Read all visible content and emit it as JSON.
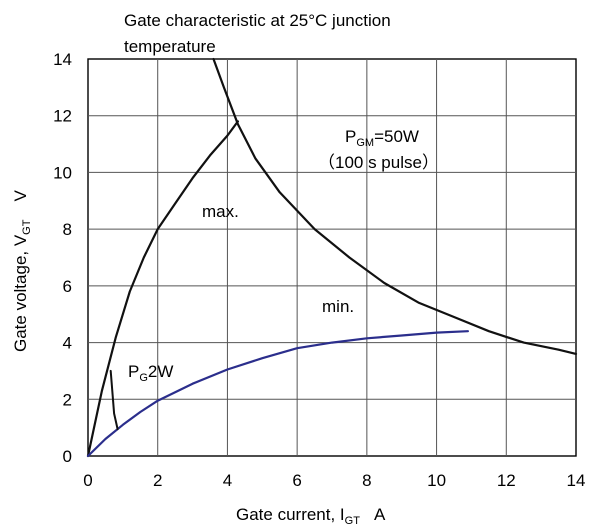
{
  "chart_data": {
    "type": "line",
    "title_line1": "Gate characteristic at  25°C junction",
    "title_line2": "temperature",
    "xlabel_prefix": "Gate current, I",
    "xlabel_sub": "GT",
    "xlabel_suffix": "A",
    "ylabel_prefix": "Gate voltage, V",
    "ylabel_sub": "GT",
    "ylabel_suffix": "V",
    "xlim": [
      0,
      14
    ],
    "ylim": [
      0,
      14
    ],
    "xticks": [
      "0",
      "2",
      "4",
      "6",
      "8",
      "10",
      "12",
      "14"
    ],
    "yticks": [
      "0",
      "2",
      "4",
      "6",
      "8",
      "10",
      "12",
      "14"
    ],
    "grid": true,
    "colors": {
      "black_curves": "#111111",
      "blue_curve": "#2b2e8c",
      "grid": "#555555"
    },
    "series": [
      {
        "key": "power_limit",
        "values": [
          [
            3.6,
            14
          ],
          [
            3.9,
            13
          ],
          [
            4.3,
            11.7
          ],
          [
            4.8,
            10.5
          ],
          [
            5.5,
            9.3
          ],
          [
            6.5,
            8.0
          ],
          [
            7.5,
            7.0
          ],
          [
            8.5,
            6.1
          ],
          [
            9.5,
            5.4
          ],
          [
            10.5,
            4.9
          ],
          [
            11.5,
            4.4
          ],
          [
            12.5,
            4.0
          ],
          [
            13.5,
            3.75
          ],
          [
            14,
            3.6
          ]
        ]
      },
      {
        "key": "max",
        "values": [
          [
            0,
            0
          ],
          [
            0.4,
            2.3
          ],
          [
            0.8,
            4.2
          ],
          [
            1.2,
            5.8
          ],
          [
            1.6,
            7.0
          ],
          [
            2.0,
            8.0
          ],
          [
            2.5,
            8.9
          ],
          [
            3.0,
            9.8
          ],
          [
            3.5,
            10.6
          ],
          [
            4.0,
            11.3
          ],
          [
            4.3,
            11.8
          ]
        ]
      },
      {
        "key": "min",
        "values": [
          [
            0,
            0
          ],
          [
            0.5,
            0.6
          ],
          [
            1.0,
            1.1
          ],
          [
            1.5,
            1.55
          ],
          [
            2.0,
            1.95
          ],
          [
            3.0,
            2.55
          ],
          [
            4.0,
            3.05
          ],
          [
            5.0,
            3.45
          ],
          [
            6.0,
            3.8
          ],
          [
            7.0,
            4.0
          ],
          [
            8.0,
            4.15
          ],
          [
            9.0,
            4.25
          ],
          [
            10.0,
            4.35
          ],
          [
            10.9,
            4.4
          ]
        ]
      },
      {
        "key": "pg_spike",
        "values": [
          [
            0.65,
            3.0
          ],
          [
            0.75,
            1.5
          ],
          [
            0.85,
            0.95
          ]
        ]
      }
    ],
    "annotations": {
      "pgm_main": "P",
      "pgm_sub": "GM",
      "pgm_rest": "=50W",
      "pulse": "（100  s  pulse）",
      "max": "max.",
      "min": "min.",
      "pg_main": "P",
      "pg_sub": "G",
      "pg_rest": "2W"
    }
  }
}
